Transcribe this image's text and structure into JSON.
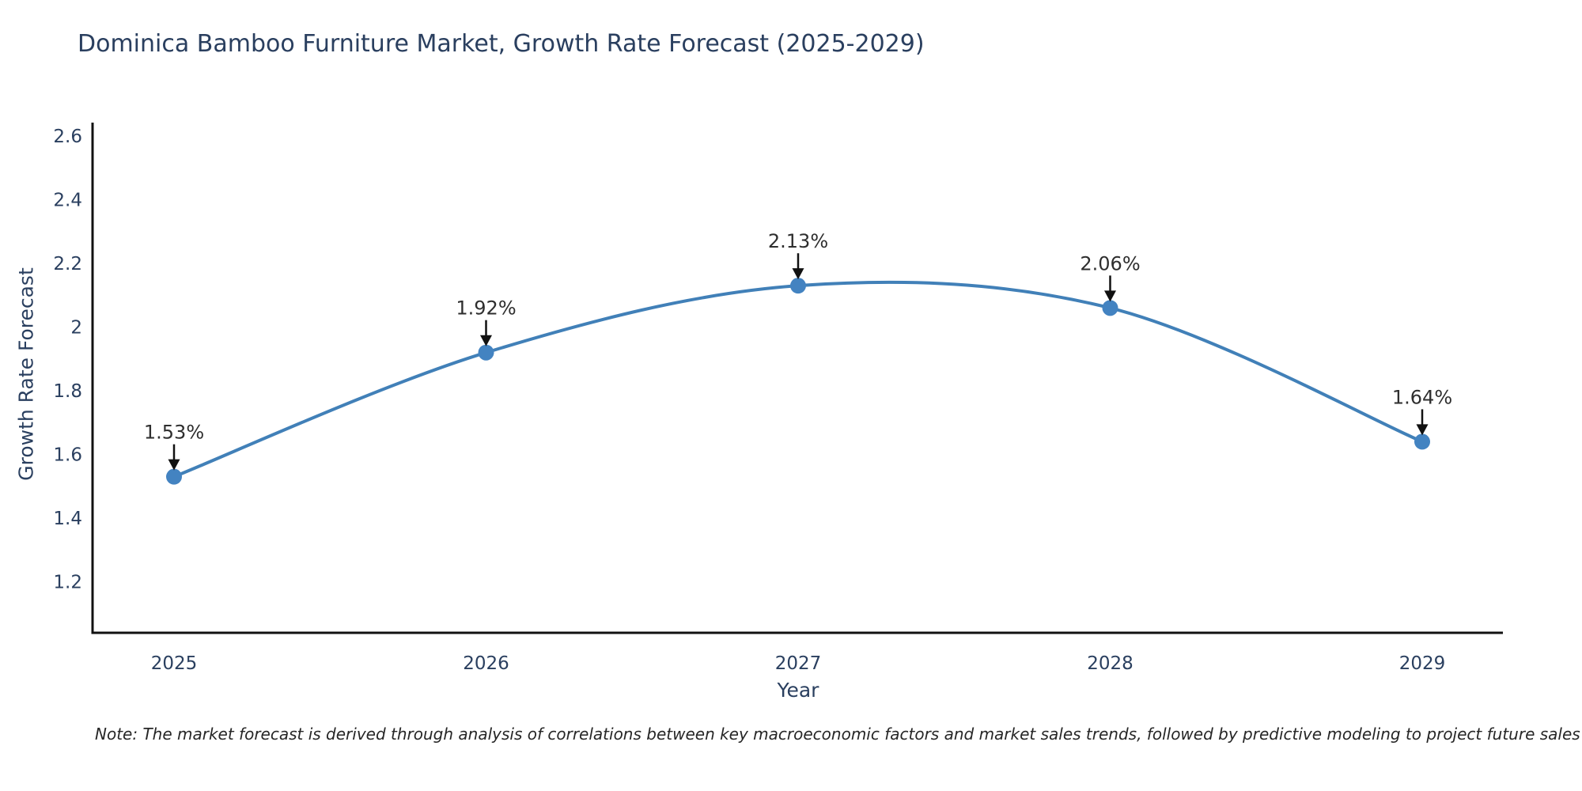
{
  "chart": {
    "note": "Note: The market forecast is derived through analysis of correlations between key macroeconomic factors and market sales trends, followed by predictive modeling to project future sales",
    "colors": {
      "line": "#4180b8",
      "marker": "#4383c1",
      "axis_line": "#111111",
      "tick_text": "#2a3f5f",
      "annotation_text": "#2e2e2e",
      "annotation_arrow": "#111111",
      "background": "#ffffff"
    }
  },
  "chart_data": {
    "type": "line",
    "title": "Dominica Bamboo Furniture Market, Growth Rate Forecast (2025-2029)",
    "xlabel": "Year",
    "ylabel": "Growth Rate Forecast",
    "x": [
      2025,
      2026,
      2027,
      2028,
      2029
    ],
    "x_tick_labels": [
      "2025",
      "2026",
      "2027",
      "2028",
      "2029"
    ],
    "series": [
      {
        "name": "Growth Rate Forecast",
        "values": [
          1.53,
          1.92,
          2.13,
          2.06,
          1.64
        ]
      }
    ],
    "point_labels": [
      "1.53%",
      "1.92%",
      "2.13%",
      "2.06%",
      "1.64%"
    ],
    "y_ticks": [
      2.6,
      2.4,
      2.2,
      2.0,
      1.8,
      1.6,
      1.4,
      1.2
    ],
    "y_tick_labels": [
      "2.6",
      "2.4",
      "2.2",
      "2",
      "1.8",
      "1.6",
      "1.4",
      "1.2"
    ],
    "ylim": [
      1.05,
      2.65
    ],
    "line_shape": "spline",
    "grid": false,
    "legend_position": "none",
    "annotation_style": "down-arrow"
  }
}
